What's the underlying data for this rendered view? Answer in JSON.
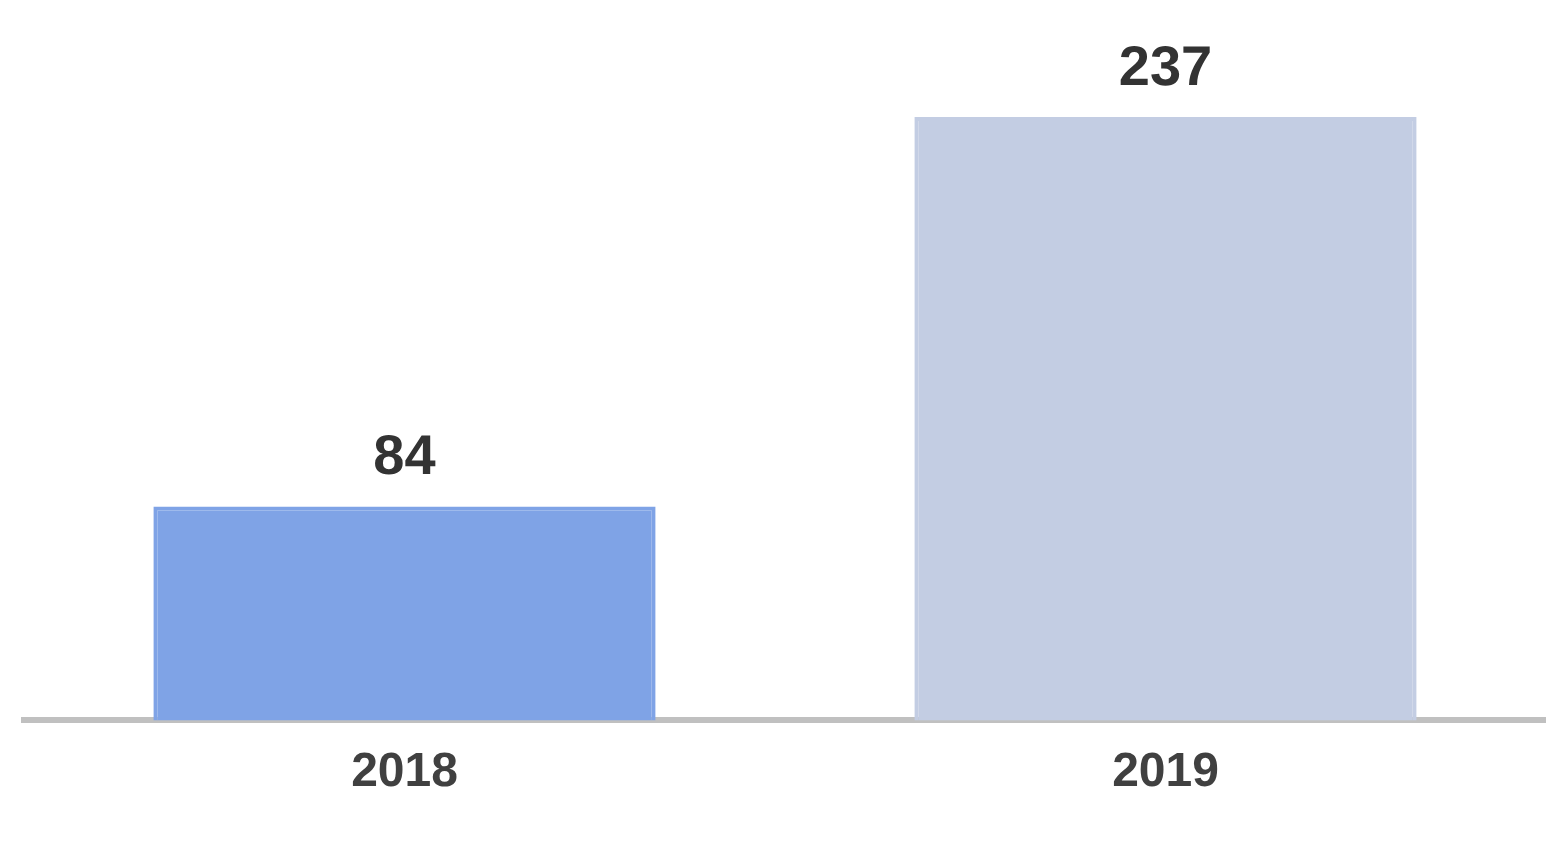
{
  "chart_data": {
    "type": "bar",
    "categories": [
      "2018",
      "2019"
    ],
    "values": [
      84,
      237
    ],
    "colors": [
      "#7fa3e6",
      "#c3cde3"
    ],
    "data_labels": true,
    "grid": false,
    "legend": false
  }
}
